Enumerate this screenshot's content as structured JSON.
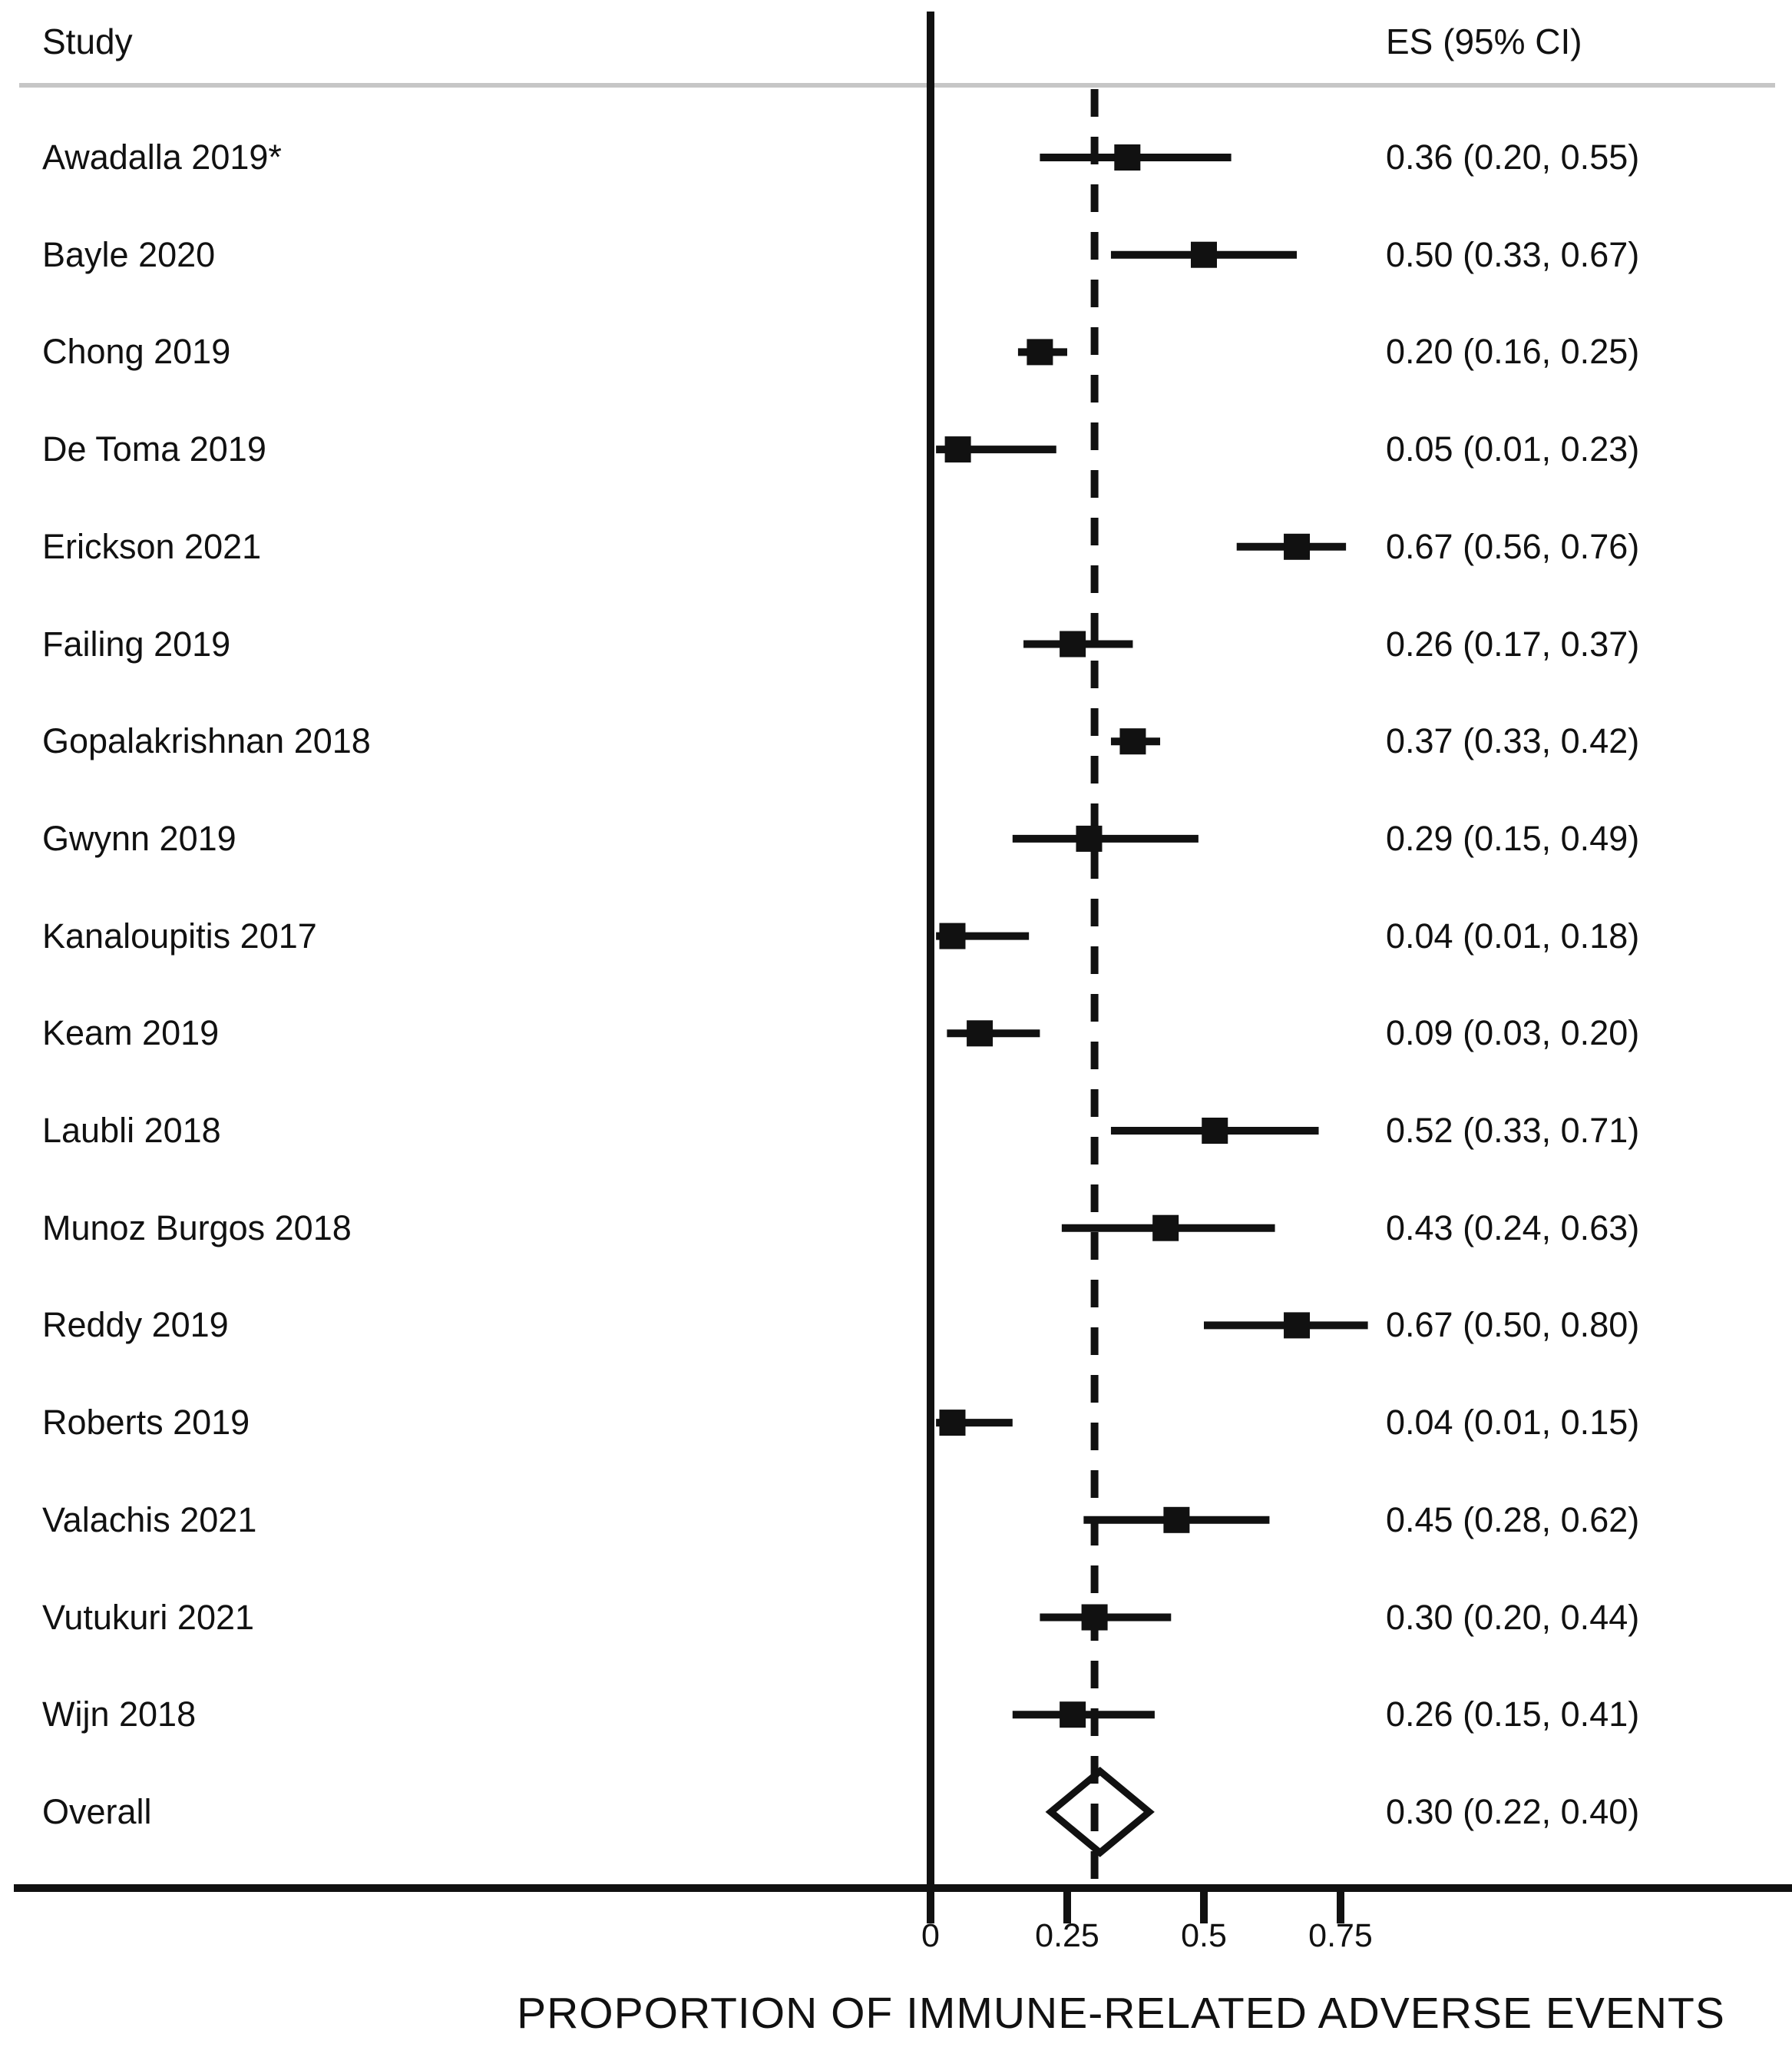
{
  "header": {
    "study_col": "Study",
    "es_col": "ES (95% CI)"
  },
  "chart_data": {
    "type": "forest",
    "xlabel": "PROPORTION OF IMMUNE-RELATED ADVERSE EVENTS",
    "x_ticks": [
      0,
      0.25,
      0.5,
      0.75
    ],
    "x_tick_labels": [
      "0",
      "0.25",
      "0.5",
      "0.75"
    ],
    "xlim": [
      -1.68,
      1.58
    ],
    "reference_line_at": 0.3,
    "grid": false,
    "studies": [
      {
        "label": "Awadalla 2019*",
        "es": 0.36,
        "lo": 0.2,
        "hi": 0.55,
        "es_text": "0.36 (0.20, 0.55)"
      },
      {
        "label": "Bayle 2020",
        "es": 0.5,
        "lo": 0.33,
        "hi": 0.67,
        "es_text": "0.50 (0.33, 0.67)"
      },
      {
        "label": "Chong 2019",
        "es": 0.2,
        "lo": 0.16,
        "hi": 0.25,
        "es_text": "0.20 (0.16, 0.25)"
      },
      {
        "label": "De Toma 2019",
        "es": 0.05,
        "lo": 0.01,
        "hi": 0.23,
        "es_text": "0.05 (0.01, 0.23)"
      },
      {
        "label": "Erickson 2021",
        "es": 0.67,
        "lo": 0.56,
        "hi": 0.76,
        "es_text": "0.67 (0.56, 0.76)"
      },
      {
        "label": "Failing 2019",
        "es": 0.26,
        "lo": 0.17,
        "hi": 0.37,
        "es_text": "0.26 (0.17, 0.37)"
      },
      {
        "label": "Gopalakrishnan 2018",
        "es": 0.37,
        "lo": 0.33,
        "hi": 0.42,
        "es_text": "0.37 (0.33, 0.42)"
      },
      {
        "label": "Gwynn 2019",
        "es": 0.29,
        "lo": 0.15,
        "hi": 0.49,
        "es_text": "0.29 (0.15, 0.49)"
      },
      {
        "label": "Kanaloupitis 2017",
        "es": 0.04,
        "lo": 0.01,
        "hi": 0.18,
        "es_text": "0.04 (0.01, 0.18)"
      },
      {
        "label": "Keam 2019",
        "es": 0.09,
        "lo": 0.03,
        "hi": 0.2,
        "es_text": "0.09 (0.03, 0.20)"
      },
      {
        "label": "Laubli 2018",
        "es": 0.52,
        "lo": 0.33,
        "hi": 0.71,
        "es_text": "0.52 (0.33, 0.71)"
      },
      {
        "label": "Munoz Burgos 2018",
        "es": 0.43,
        "lo": 0.24,
        "hi": 0.63,
        "es_text": "0.43 (0.24, 0.63)"
      },
      {
        "label": "Reddy 2019",
        "es": 0.67,
        "lo": 0.5,
        "hi": 0.8,
        "es_text": "0.67 (0.50, 0.80)"
      },
      {
        "label": "Roberts 2019",
        "es": 0.04,
        "lo": 0.01,
        "hi": 0.15,
        "es_text": "0.04 (0.01, 0.15)"
      },
      {
        "label": "Valachis 2021",
        "es": 0.45,
        "lo": 0.28,
        "hi": 0.62,
        "es_text": "0.45 (0.28, 0.62)"
      },
      {
        "label": "Vutukuri 2021",
        "es": 0.3,
        "lo": 0.2,
        "hi": 0.44,
        "es_text": "0.30 (0.20, 0.44)"
      },
      {
        "label": "Wijn 2018",
        "es": 0.26,
        "lo": 0.15,
        "hi": 0.41,
        "es_text": "0.26 (0.15, 0.41)"
      }
    ],
    "overall": {
      "label": "Overall",
      "es": 0.3,
      "lo": 0.22,
      "hi": 0.4,
      "es_text": "0.30 (0.22, 0.40)"
    }
  },
  "colors": {
    "ink": "#111111",
    "divider": "#c6c6c6",
    "background": "#ffffff"
  }
}
